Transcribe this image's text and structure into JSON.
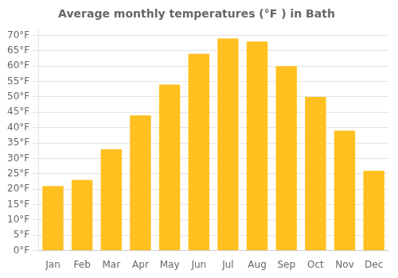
{
  "chart_data": {
    "type": "bar",
    "title": "Average monthly temperatures (°F ) in Bath",
    "categories": [
      "Jan",
      "Feb",
      "Mar",
      "Apr",
      "May",
      "Jun",
      "Jul",
      "Aug",
      "Sep",
      "Oct",
      "Nov",
      "Dec"
    ],
    "values": [
      21,
      23,
      33,
      44,
      54,
      64,
      69,
      68,
      60,
      50,
      39,
      26
    ],
    "color": "#FFC020",
    "ylim": [
      0,
      72
    ],
    "yticks": [
      {
        "value": 0,
        "label": "0°F"
      },
      {
        "value": 5,
        "label": "5°F"
      },
      {
        "value": 10,
        "label": "10°F"
      },
      {
        "value": 15,
        "label": "15°F"
      },
      {
        "value": 20,
        "label": "20°F"
      },
      {
        "value": 25,
        "label": "25°F"
      },
      {
        "value": 30,
        "label": "30°F"
      },
      {
        "value": 35,
        "label": "35°F"
      },
      {
        "value": 40,
        "label": "40°F"
      },
      {
        "value": 45,
        "label": "45°F"
      },
      {
        "value": 50,
        "label": "50°F"
      },
      {
        "value": 55,
        "label": "55°F"
      },
      {
        "value": 60,
        "label": "60°F"
      },
      {
        "value": 65,
        "label": "65°F"
      },
      {
        "value": 70,
        "label": "70°F"
      }
    ],
    "grid": true
  }
}
